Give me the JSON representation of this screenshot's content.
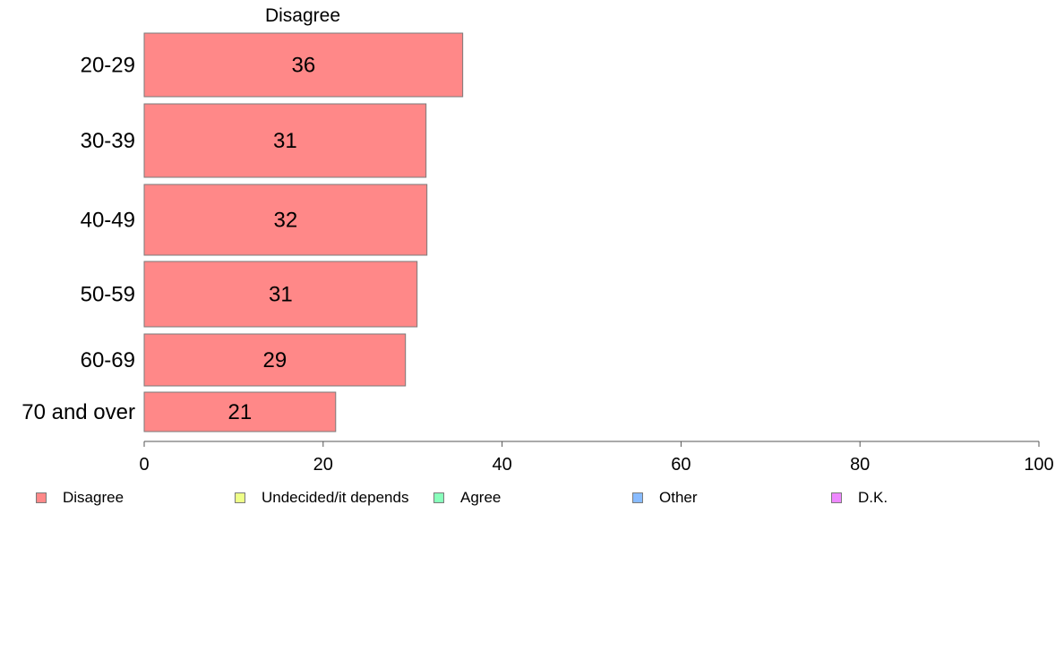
{
  "chart_data": {
    "type": "bar",
    "orientation": "horizontal",
    "panel_title": "Disagree",
    "categories": [
      "20-29",
      "30-39",
      "40-49",
      "50-59",
      "60-69",
      "70 and over"
    ],
    "series": [
      {
        "name": "Disagree",
        "values": [
          36,
          31,
          32,
          31,
          29,
          21
        ],
        "color": "#ff8888"
      }
    ],
    "bar_value_positions": [
      35.6,
      31.5,
      31.6,
      30.5,
      29.2,
      21.4
    ],
    "xlim": [
      0,
      100
    ],
    "xticks": [
      0,
      20,
      40,
      60,
      80,
      100
    ],
    "legend": {
      "placement": "bottom",
      "entries": [
        {
          "label": "Disagree",
          "color": "#ff8888"
        },
        {
          "label": "Undecided/it depends",
          "color": "#eeff88"
        },
        {
          "label": "Agree",
          "color": "#88ffbb"
        },
        {
          "label": "Other",
          "color": "#88bbff"
        },
        {
          "label": "D.K.",
          "color": "#ee88ff"
        }
      ]
    }
  }
}
